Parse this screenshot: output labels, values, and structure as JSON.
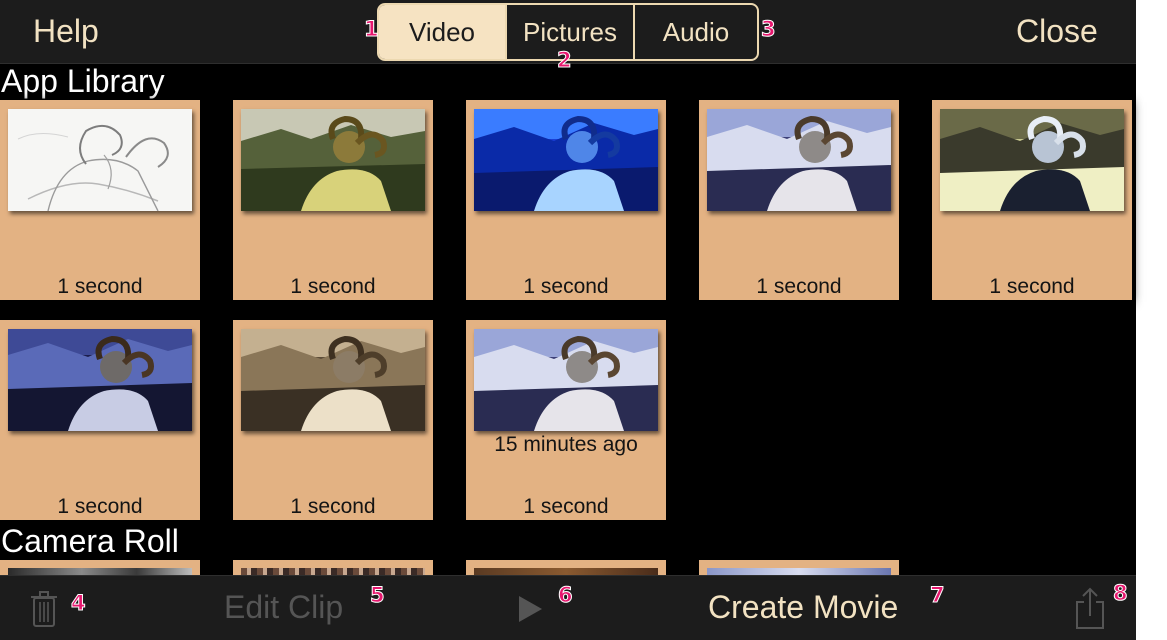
{
  "header": {
    "help_label": "Help",
    "close_label": "Close",
    "tabs": [
      {
        "label": "Video",
        "selected": true
      },
      {
        "label": "Pictures",
        "selected": false
      },
      {
        "label": "Audio",
        "selected": false
      }
    ]
  },
  "callouts": [
    "1",
    "2",
    "3",
    "4",
    "5",
    "6",
    "7",
    "8"
  ],
  "app_library": {
    "title": "App Library",
    "clips": [
      {
        "label": "1 second",
        "thumb": "sketch-ram-thumbnail"
      },
      {
        "label": "1 second",
        "thumb": "olive-ram-thumbnail"
      },
      {
        "label": "1 second",
        "thumb": "blue-ram-thumbnail"
      },
      {
        "label": "1 second",
        "thumb": "natural-ram-thumbnail"
      },
      {
        "label": "1 second",
        "thumb": "inverted-ram-thumbnail"
      },
      {
        "label": "1 second",
        "thumb": "dark-ram-thumbnail"
      },
      {
        "label": "1 second",
        "thumb": "sepia-ram-thumbnail"
      },
      {
        "label": "1 second",
        "sublabel": "15 minutes ago",
        "thumb": "natural-ram-thumbnail"
      }
    ]
  },
  "camera_roll": {
    "title": "Camera Roll"
  },
  "toolbar": {
    "trash_icon": "trash-icon",
    "edit_clip_label": "Edit Clip",
    "play_icon": "play-icon",
    "create_movie_label": "Create Movie",
    "share_icon": "share-icon"
  },
  "colors": {
    "bar_background": "#1c1c1c",
    "accent_text": "#f2e2c2",
    "tile_background": "#e3b283",
    "disabled_text": "#555555",
    "callout_badge": "#e6176e"
  }
}
